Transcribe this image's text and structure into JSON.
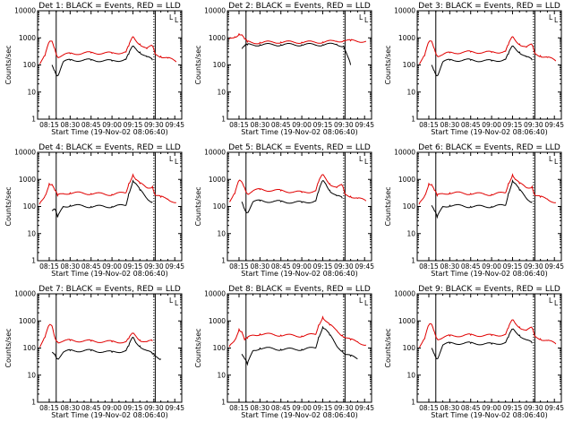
{
  "figure": {
    "layout": "3x3 grid of detector light curves",
    "background": "#ffffff",
    "colors": {
      "events": "#000000",
      "lld": "#e00000",
      "axes": "#000000"
    }
  },
  "chart_data": [
    {
      "type": "line",
      "title": "Det 1: BLACK = Events, RED = LLD",
      "xlabel": "Start Time (19-Nov-02 08:06:40)",
      "ylabel": "Counts/sec",
      "yscale": "log",
      "ylim": [
        1,
        10000
      ],
      "xticks": [
        "08:15",
        "08:30",
        "08:45",
        "09:00",
        "09:15",
        "09:30",
        "09:45"
      ],
      "yticks": [
        "1",
        "10",
        "100",
        "1000",
        "10000"
      ],
      "markers": [
        {
          "time": "08:20",
          "style": "solid"
        },
        {
          "time": "09:30",
          "style": "dotted"
        },
        {
          "time": "09:31",
          "style": "solid"
        }
      ],
      "legend_letters": [
        "L",
        "L"
      ],
      "x": [
        "08:08",
        "08:12",
        "08:15",
        "08:17",
        "08:19",
        "08:21",
        "08:25",
        "08:30",
        "08:45",
        "09:00",
        "09:10",
        "09:12",
        "09:15",
        "09:17",
        "09:20",
        "09:25",
        "09:29",
        "09:31",
        "09:35",
        "09:40",
        "09:46"
      ],
      "series": [
        {
          "name": "LLD",
          "color": "#e00000",
          "values": [
            110,
            220,
            700,
            750,
            400,
            200,
            230,
            260,
            280,
            270,
            300,
            500,
            1100,
            800,
            600,
            400,
            500,
            250,
            210,
            180,
            130
          ]
        },
        {
          "name": "Events",
          "color": "#000000",
          "values": [
            null,
            null,
            null,
            100,
            60,
            40,
            130,
            150,
            150,
            140,
            160,
            250,
            500,
            400,
            300,
            200,
            150,
            null,
            null,
            null,
            null
          ]
        }
      ]
    },
    {
      "type": "line",
      "title": "Det 2: BLACK = Events, RED = LLD",
      "xlabel": "Start Time (19-Nov-02 08:06:40)",
      "ylabel": "Counts/sec",
      "yscale": "log",
      "ylim": [
        1,
        10000
      ],
      "xticks": [
        "08:15",
        "08:30",
        "08:45",
        "09:00",
        "09:15",
        "09:30",
        "09:45"
      ],
      "yticks": [
        "1",
        "10",
        "100",
        "1000",
        "10000"
      ],
      "markers": [
        {
          "time": "08:20",
          "style": "solid"
        },
        {
          "time": "09:30",
          "style": "dotted"
        },
        {
          "time": "09:31",
          "style": "solid"
        }
      ],
      "legend_letters": [
        "L",
        "L"
      ],
      "x": [
        "08:08",
        "08:12",
        "08:15",
        "08:17",
        "08:19",
        "08:21",
        "08:25",
        "08:30",
        "08:45",
        "09:00",
        "09:15",
        "09:25",
        "09:30",
        "09:35",
        "09:46"
      ],
      "series": [
        {
          "name": "LLD",
          "color": "#e00000",
          "values": [
            900,
            1100,
            1400,
            1300,
            900,
            700,
            650,
            680,
            700,
            690,
            700,
            760,
            800,
            780,
            750
          ]
        },
        {
          "name": "Events",
          "color": "#000000",
          "values": [
            null,
            null,
            null,
            400,
            500,
            550,
            550,
            560,
            560,
            560,
            560,
            580,
            500,
            100,
            null
          ]
        }
      ]
    },
    {
      "type": "line",
      "title": "Det 3: BLACK = Events, RED = LLD",
      "xlabel": "Start Time (19-Nov-02 08:06:40)",
      "ylabel": "Counts/sec",
      "yscale": "log",
      "ylim": [
        1,
        10000
      ],
      "xticks": [
        "08:15",
        "08:30",
        "08:45",
        "09:00",
        "09:15",
        "09:30",
        "09:45"
      ],
      "yticks": [
        "1",
        "10",
        "100",
        "1000",
        "10000"
      ],
      "markers": [
        {
          "time": "08:20",
          "style": "solid"
        },
        {
          "time": "09:30",
          "style": "dotted"
        },
        {
          "time": "09:31",
          "style": "solid"
        }
      ],
      "legend_letters": [
        "L",
        "L"
      ],
      "x": [
        "08:08",
        "08:12",
        "08:15",
        "08:17",
        "08:19",
        "08:21",
        "08:25",
        "08:30",
        "08:45",
        "09:00",
        "09:10",
        "09:12",
        "09:15",
        "09:17",
        "09:20",
        "09:25",
        "09:29",
        "09:31",
        "09:35",
        "09:40",
        "09:46"
      ],
      "series": [
        {
          "name": "LLD",
          "color": "#e00000",
          "values": [
            110,
            220,
            700,
            750,
            400,
            220,
            240,
            280,
            300,
            290,
            320,
            550,
            1100,
            800,
            600,
            450,
            550,
            260,
            220,
            190,
            140
          ]
        },
        {
          "name": "Events",
          "color": "#000000",
          "values": [
            null,
            null,
            null,
            100,
            60,
            40,
            130,
            150,
            150,
            140,
            160,
            250,
            500,
            400,
            300,
            200,
            150,
            null,
            null,
            null,
            null
          ]
        }
      ]
    },
    {
      "type": "line",
      "title": "Det 4: BLACK = Events, RED = LLD",
      "xlabel": "Start Time (19-Nov-02 08:06:40)",
      "ylabel": "Counts/sec",
      "yscale": "log",
      "ylim": [
        1,
        10000
      ],
      "xticks": [
        "08:15",
        "08:30",
        "08:45",
        "09:00",
        "09:15",
        "09:30",
        "09:45"
      ],
      "yticks": [
        "1",
        "10",
        "100",
        "1000",
        "10000"
      ],
      "markers": [
        {
          "time": "08:20",
          "style": "solid"
        },
        {
          "time": "09:30",
          "style": "dotted"
        },
        {
          "time": "09:31",
          "style": "solid"
        }
      ],
      "legend_letters": [
        "L",
        "L"
      ],
      "x": [
        "08:08",
        "08:12",
        "08:15",
        "08:17",
        "08:19",
        "08:21",
        "08:25",
        "08:30",
        "08:45",
        "09:00",
        "09:10",
        "09:12",
        "09:15",
        "09:17",
        "09:20",
        "09:25",
        "09:29",
        "09:31",
        "09:35",
        "09:40",
        "09:46"
      ],
      "series": [
        {
          "name": "LLD",
          "color": "#e00000",
          "values": [
            120,
            250,
            700,
            650,
            400,
            250,
            300,
            320,
            300,
            280,
            320,
            700,
            1500,
            1000,
            700,
            500,
            550,
            260,
            220,
            190,
            140
          ]
        },
        {
          "name": "Events",
          "color": "#000000",
          "values": [
            null,
            null,
            null,
            70,
            80,
            40,
            100,
            110,
            100,
            100,
            110,
            300,
            900,
            700,
            400,
            200,
            150,
            null,
            null,
            null,
            null
          ]
        }
      ]
    },
    {
      "type": "line",
      "title": "Det 5: BLACK = Events, RED = LLD",
      "xlabel": "Start Time (19-Nov-02 08:06:40)",
      "ylabel": "Counts/sec",
      "yscale": "log",
      "ylim": [
        1,
        10000
      ],
      "xticks": [
        "08:15",
        "08:30",
        "08:45",
        "09:00",
        "09:15",
        "09:30",
        "09:45"
      ],
      "yticks": [
        "1",
        "10",
        "100",
        "1000",
        "10000"
      ],
      "markers": [
        {
          "time": "08:20",
          "style": "solid"
        },
        {
          "time": "09:30",
          "style": "dotted"
        },
        {
          "time": "09:31",
          "style": "solid"
        }
      ],
      "legend_letters": [
        "L",
        "L"
      ],
      "x": [
        "08:08",
        "08:12",
        "08:15",
        "08:17",
        "08:19",
        "08:21",
        "08:25",
        "08:30",
        "08:45",
        "09:00",
        "09:10",
        "09:12",
        "09:15",
        "09:17",
        "09:20",
        "09:25",
        "09:29",
        "09:31",
        "09:35",
        "09:40",
        "09:46"
      ],
      "series": [
        {
          "name": "LLD",
          "color": "#e00000",
          "values": [
            150,
            300,
            900,
            800,
            500,
            300,
            380,
            420,
            380,
            330,
            380,
            800,
            1500,
            1100,
            700,
            500,
            600,
            280,
            240,
            200,
            160
          ]
        },
        {
          "name": "Events",
          "color": "#000000",
          "values": [
            null,
            null,
            null,
            150,
            80,
            60,
            150,
            160,
            150,
            140,
            160,
            350,
            900,
            700,
            400,
            250,
            200,
            null,
            null,
            null,
            null
          ]
        }
      ]
    },
    {
      "type": "line",
      "title": "Det 6: BLACK = Events, RED = LLD",
      "xlabel": "Start Time (19-Nov-02 08:06:40)",
      "ylabel": "Counts/sec",
      "yscale": "log",
      "ylim": [
        1,
        10000
      ],
      "xticks": [
        "08:15",
        "08:30",
        "08:45",
        "09:00",
        "09:15",
        "09:30",
        "09:45"
      ],
      "yticks": [
        "1",
        "10",
        "100",
        "1000",
        "10000"
      ],
      "markers": [
        {
          "time": "08:20",
          "style": "solid"
        },
        {
          "time": "09:30",
          "style": "dotted"
        },
        {
          "time": "09:31",
          "style": "solid"
        }
      ],
      "legend_letters": [
        "L",
        "L"
      ],
      "x": [
        "08:08",
        "08:12",
        "08:15",
        "08:17",
        "08:19",
        "08:21",
        "08:25",
        "08:30",
        "08:45",
        "09:00",
        "09:10",
        "09:12",
        "09:15",
        "09:17",
        "09:20",
        "09:25",
        "09:29",
        "09:31",
        "09:35",
        "09:40",
        "09:46"
      ],
      "series": [
        {
          "name": "LLD",
          "color": "#e00000",
          "values": [
            120,
            250,
            700,
            650,
            400,
            250,
            300,
            320,
            300,
            280,
            320,
            700,
            1500,
            1000,
            700,
            500,
            550,
            260,
            220,
            190,
            140
          ]
        },
        {
          "name": "Events",
          "color": "#000000",
          "values": [
            null,
            null,
            null,
            110,
            70,
            40,
            100,
            110,
            100,
            100,
            110,
            300,
            900,
            700,
            400,
            200,
            150,
            null,
            null,
            null,
            null
          ]
        }
      ]
    },
    {
      "type": "line",
      "title": "Det 7: BLACK = Events, RED = LLD",
      "xlabel": "Start Time (19-Nov-02 08:06:40)",
      "ylabel": "Counts/sec",
      "yscale": "log",
      "ylim": [
        1,
        10000
      ],
      "xticks": [
        "08:15",
        "08:30",
        "08:45",
        "09:00",
        "09:15",
        "09:30",
        "09:45"
      ],
      "yticks": [
        "1",
        "10",
        "100",
        "1000",
        "10000"
      ],
      "markers": [
        {
          "time": "08:20",
          "style": "solid"
        },
        {
          "time": "09:30",
          "style": "dotted"
        },
        {
          "time": "09:31",
          "style": "solid"
        }
      ],
      "legend_letters": [
        "L",
        "L"
      ],
      "x": [
        "08:08",
        "08:12",
        "08:15",
        "08:17",
        "08:19",
        "08:21",
        "08:25",
        "08:30",
        "08:45",
        "09:00",
        "09:10",
        "09:12",
        "09:15",
        "09:17",
        "09:20",
        "09:25",
        "09:29",
        "09:31",
        "09:35",
        "09:40",
        "09:46"
      ],
      "series": [
        {
          "name": "LLD",
          "color": "#e00000",
          "values": [
            110,
            250,
            700,
            650,
            250,
            170,
            180,
            190,
            180,
            170,
            170,
            220,
            350,
            280,
            200,
            170,
            180,
            null,
            null,
            null,
            null
          ]
        },
        {
          "name": "Events",
          "color": "#000000",
          "values": [
            null,
            null,
            null,
            70,
            60,
            40,
            70,
            80,
            80,
            70,
            80,
            120,
            250,
            160,
            120,
            80,
            60,
            50,
            40,
            null,
            null
          ]
        }
      ]
    },
    {
      "type": "line",
      "title": "Det 8: BLACK = Events, RED = LLD",
      "xlabel": "Start Time (19-Nov-02 08:06:40)",
      "ylabel": "Counts/sec",
      "yscale": "log",
      "ylim": [
        1,
        10000
      ],
      "xticks": [
        "08:15",
        "08:30",
        "08:45",
        "09:00",
        "09:15",
        "09:30",
        "09:45"
      ],
      "yticks": [
        "1",
        "10",
        "100",
        "1000",
        "10000"
      ],
      "markers": [
        {
          "time": "08:20",
          "style": "solid"
        },
        {
          "time": "09:30",
          "style": "dotted"
        },
        {
          "time": "09:31",
          "style": "solid"
        }
      ],
      "legend_letters": [
        "L",
        "L"
      ],
      "x": [
        "08:08",
        "08:12",
        "08:15",
        "08:17",
        "08:19",
        "08:21",
        "08:25",
        "08:30",
        "08:45",
        "09:00",
        "09:10",
        "09:12",
        "09:15",
        "09:17",
        "09:20",
        "09:25",
        "09:29",
        "09:31",
        "09:35",
        "09:40",
        "09:46"
      ],
      "series": [
        {
          "name": "LLD",
          "color": "#e00000",
          "values": [
            110,
            200,
            500,
            400,
            200,
            230,
            300,
            330,
            300,
            280,
            320,
            700,
            1400,
            1000,
            700,
            450,
            300,
            250,
            200,
            170,
            130
          ]
        },
        {
          "name": "Events",
          "color": "#000000",
          "values": [
            null,
            null,
            null,
            60,
            40,
            25,
            80,
            100,
            90,
            90,
            100,
            250,
            600,
            500,
            300,
            120,
            80,
            60,
            50,
            40,
            null
          ]
        }
      ]
    },
    {
      "type": "line",
      "title": "Det 9: BLACK = Events, RED = LLD",
      "xlabel": "Start Time (19-Nov-02 08:06:40)",
      "ylabel": "Counts/sec",
      "yscale": "log",
      "ylim": [
        1,
        10000
      ],
      "xticks": [
        "08:15",
        "08:30",
        "08:45",
        "09:00",
        "09:15",
        "09:30",
        "09:45"
      ],
      "yticks": [
        "1",
        "10",
        "100",
        "1000",
        "10000"
      ],
      "markers": [
        {
          "time": "08:20",
          "style": "solid"
        },
        {
          "time": "09:30",
          "style": "dotted"
        },
        {
          "time": "09:31",
          "style": "solid"
        }
      ],
      "legend_letters": [
        "L",
        "L"
      ],
      "x": [
        "08:08",
        "08:12",
        "08:15",
        "08:17",
        "08:19",
        "08:21",
        "08:25",
        "08:30",
        "08:45",
        "09:00",
        "09:10",
        "09:12",
        "09:15",
        "09:17",
        "09:20",
        "09:25",
        "09:29",
        "09:31",
        "09:35",
        "09:40",
        "09:46"
      ],
      "series": [
        {
          "name": "LLD",
          "color": "#e00000",
          "values": [
            110,
            220,
            700,
            750,
            400,
            220,
            240,
            280,
            300,
            290,
            320,
            550,
            1100,
            800,
            600,
            450,
            550,
            260,
            220,
            190,
            140
          ]
        },
        {
          "name": "Events",
          "color": "#000000",
          "values": [
            null,
            null,
            null,
            100,
            60,
            40,
            130,
            150,
            150,
            140,
            160,
            250,
            500,
            400,
            300,
            200,
            150,
            null,
            null,
            null,
            null
          ]
        }
      ]
    }
  ]
}
